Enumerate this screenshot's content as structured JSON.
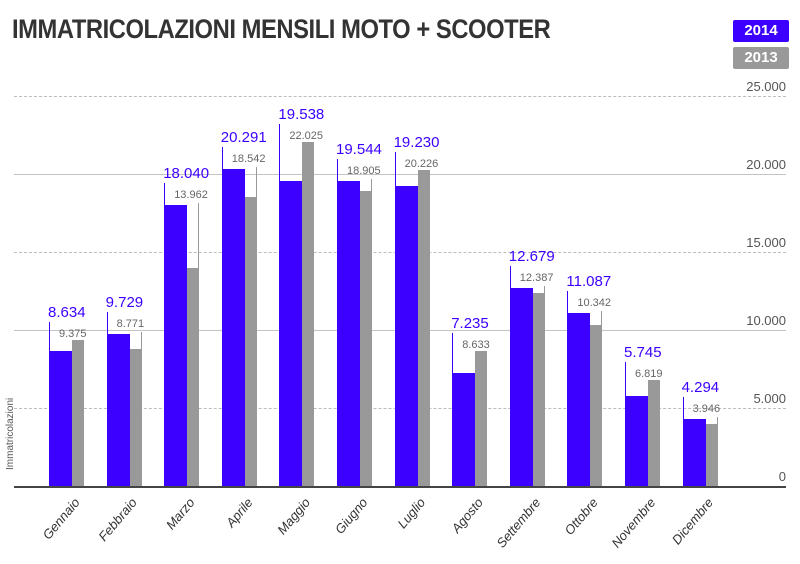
{
  "title": "IMMATRICOLAZIONI MENSILI MOTO + SCOOTER",
  "legend": [
    {
      "label": "2014",
      "color": "#3b00ff"
    },
    {
      "label": "2013",
      "color": "#999999"
    }
  ],
  "y_axis_label": "Immatricolazioni",
  "y_ticks": [
    "0",
    "5.000",
    "10.000",
    "15.000",
    "20.000",
    "25.000"
  ],
  "chart_data": {
    "type": "bar",
    "title": "IMMATRICOLAZIONI MENSILI MOTO + SCOOTER",
    "xlabel": "",
    "ylabel": "Immatricolazioni",
    "ylim": [
      0,
      25000
    ],
    "categories": [
      "Gennaio",
      "Febbraio",
      "Marzo",
      "Aprile",
      "Maggio",
      "Giugno",
      "Luglio",
      "Agosto",
      "Settembre",
      "Ottobre",
      "Novembre",
      "Dicembre"
    ],
    "series": [
      {
        "name": "2014",
        "color": "#3b00ff",
        "values": [
          8634,
          9729,
          18040,
          20291,
          19538,
          19544,
          19230,
          7235,
          12679,
          11087,
          5745,
          4294
        ],
        "labels": [
          "8.634",
          "9.729",
          "18.040",
          "20.291",
          "19.538",
          "19.544",
          "19.230",
          "7.235",
          "12.679",
          "11.087",
          "5.745",
          "4.294"
        ]
      },
      {
        "name": "2013",
        "color": "#999999",
        "values": [
          9375,
          8771,
          13962,
          18542,
          22025,
          18905,
          20226,
          8633,
          12387,
          10342,
          6819,
          3946
        ],
        "labels": [
          "9.375",
          "8.771",
          "13.962",
          "18.542",
          "22.025",
          "18.905",
          "20.226",
          "8.633",
          "12.387",
          "10.342",
          "6.819",
          "3.946"
        ]
      }
    ],
    "legend_position": "top-right",
    "grid": true
  }
}
